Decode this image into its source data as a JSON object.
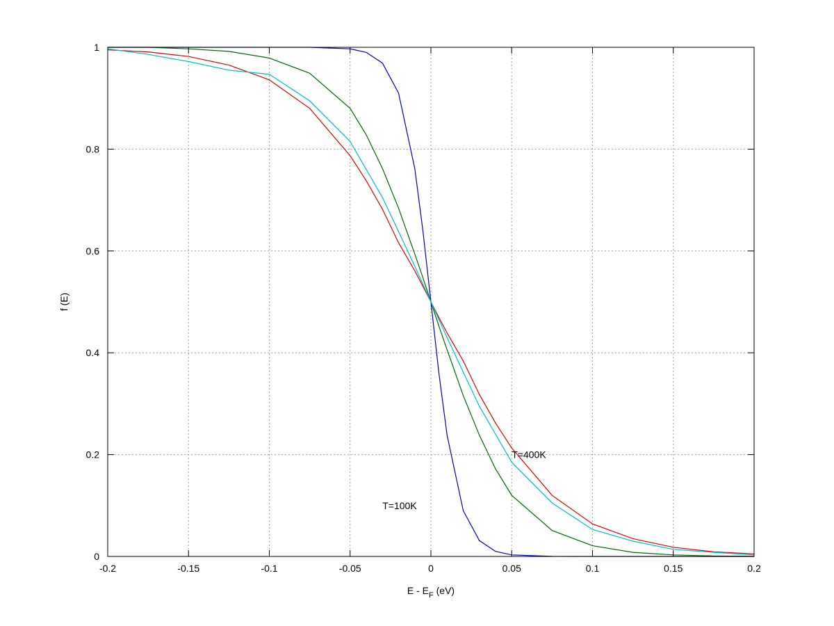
{
  "chart_data": {
    "type": "line",
    "title": "",
    "xlabel_main": "E - E",
    "xlabel_sub": "F",
    "xlabel_unit": " (eV)",
    "ylabel": "f (E)",
    "xlim": [
      -0.2,
      0.2
    ],
    "ylim": [
      0,
      1
    ],
    "grid": true,
    "x_ticks": [
      -0.2,
      -0.15,
      -0.1,
      -0.05,
      0,
      0.05,
      0.1,
      0.15,
      0.2
    ],
    "x_tick_labels": [
      "-0.2",
      "-0.15",
      "-0.1",
      "-0.05",
      "0",
      "0.05",
      "0.1",
      "0.15",
      "0.2"
    ],
    "y_ticks": [
      0,
      0.2,
      0.4,
      0.6,
      0.8,
      1
    ],
    "y_tick_labels": [
      "0",
      "0.2",
      "0.4",
      "0.6",
      "0.8",
      "1"
    ],
    "x": [
      -0.2,
      -0.175,
      -0.15,
      -0.125,
      -0.1,
      -0.075,
      -0.05,
      -0.04,
      -0.03,
      -0.02,
      -0.01,
      -0.005,
      0,
      0.005,
      0.01,
      0.02,
      0.03,
      0.04,
      0.05,
      0.075,
      0.1,
      0.125,
      0.15,
      0.175,
      0.2
    ],
    "series": [
      {
        "color": "#0000bb",
        "values": [
          1.0,
          1.0,
          1.0,
          1.0,
          1.0,
          1.0,
          0.997,
          0.99,
          0.969,
          0.91,
          0.762,
          0.641,
          0.5,
          0.359,
          0.238,
          0.09,
          0.031,
          0.01,
          0.003,
          0.0002,
          0.0,
          0.0,
          0.0,
          0.0,
          0.0
        ]
      },
      {
        "color": "#006600",
        "values": [
          1.0,
          1.0,
          0.997,
          0.992,
          0.979,
          0.949,
          0.88,
          0.828,
          0.762,
          0.684,
          0.594,
          0.548,
          0.5,
          0.452,
          0.406,
          0.316,
          0.238,
          0.172,
          0.12,
          0.051,
          0.021,
          0.008,
          0.003,
          0.001,
          0.0004
        ]
      },
      {
        "color": "#dd0000",
        "values": [
          0.995,
          0.991,
          0.982,
          0.965,
          0.936,
          0.88,
          0.787,
          0.738,
          0.682,
          0.616,
          0.561,
          0.531,
          0.5,
          0.469,
          0.439,
          0.384,
          0.318,
          0.262,
          0.213,
          0.12,
          0.064,
          0.035,
          0.018,
          0.009,
          0.005
        ]
      },
      {
        "color": "#00bbcc",
        "values": [
          0.997,
          0.986,
          0.972,
          0.955,
          0.947,
          0.895,
          0.815,
          0.76,
          0.705,
          0.638,
          0.57,
          0.535,
          0.5,
          0.465,
          0.43,
          0.362,
          0.295,
          0.24,
          0.185,
          0.105,
          0.053,
          0.03,
          0.014,
          0.008,
          0.003
        ]
      }
    ],
    "annotations": [
      {
        "text": "T=400K",
        "x": 0.05,
        "y": 0.2
      },
      {
        "text": "T=100K",
        "x": -0.03,
        "y": 0.1
      }
    ]
  }
}
